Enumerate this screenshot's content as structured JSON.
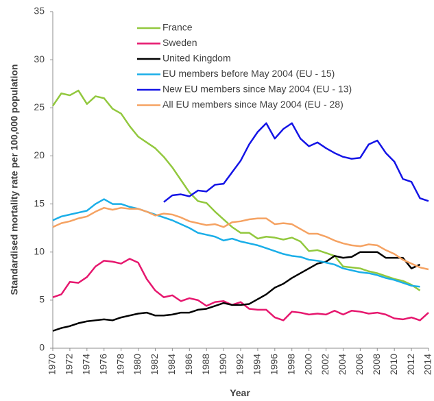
{
  "chart_data": {
    "type": "line",
    "y_label": "Standardised mortality rate per 100,000 population",
    "x_label": "Year",
    "x": [
      1970,
      1971,
      1972,
      1973,
      1974,
      1975,
      1976,
      1977,
      1978,
      1979,
      1980,
      1981,
      1982,
      1983,
      1984,
      1985,
      1986,
      1987,
      1988,
      1989,
      1990,
      1991,
      1992,
      1993,
      1994,
      1995,
      1996,
      1997,
      1998,
      1999,
      2000,
      2001,
      2002,
      2003,
      2004,
      2005,
      2006,
      2007,
      2008,
      2009,
      2010,
      2011,
      2012,
      2013,
      2014
    ],
    "xlim": [
      1970,
      2014
    ],
    "xticks": [
      1970,
      1972,
      1974,
      1976,
      1978,
      1980,
      1982,
      1984,
      1986,
      1988,
      1990,
      1992,
      1994,
      1996,
      1998,
      2000,
      2002,
      2004,
      2006,
      2008,
      2010,
      2012,
      2014
    ],
    "ylim": [
      0,
      35
    ],
    "yticks": [
      0,
      5,
      10,
      15,
      20,
      25,
      30,
      35
    ],
    "grid": false,
    "legend": "upper-left",
    "series": [
      {
        "name": "France",
        "color": "#92c83e",
        "values": [
          25.2,
          26.5,
          26.3,
          26.8,
          25.4,
          26.2,
          26.0,
          24.9,
          24.4,
          23.1,
          22.0,
          21.4,
          20.8,
          19.9,
          18.8,
          17.5,
          16.2,
          15.3,
          15.1,
          14.2,
          13.4,
          12.6,
          12.0,
          12.0,
          11.4,
          11.6,
          11.5,
          11.3,
          11.5,
          11.1,
          10.1,
          10.2,
          9.9,
          9.6,
          8.5,
          8.4,
          8.3,
          8.0,
          7.8,
          7.5,
          7.2,
          7.0,
          6.6,
          6.0,
          null
        ]
      },
      {
        "name": "Sweden",
        "color": "#e6176e",
        "values": [
          5.3,
          5.6,
          6.9,
          6.8,
          7.4,
          8.5,
          9.1,
          9.0,
          8.8,
          9.3,
          8.9,
          7.2,
          6.0,
          5.3,
          5.5,
          4.9,
          5.2,
          5.0,
          4.4,
          4.8,
          4.9,
          4.5,
          4.8,
          4.1,
          4.0,
          4.0,
          3.2,
          2.9,
          3.8,
          3.7,
          3.5,
          3.6,
          3.5,
          3.9,
          3.5,
          3.9,
          3.8,
          3.6,
          3.7,
          3.5,
          3.1,
          3.0,
          3.2,
          2.9,
          3.7
        ]
      },
      {
        "name": "United Kingdom",
        "color": "#000000",
        "values": [
          1.8,
          2.1,
          2.3,
          2.6,
          2.8,
          2.9,
          3.0,
          2.9,
          3.2,
          3.4,
          3.6,
          3.7,
          3.4,
          3.4,
          3.5,
          3.7,
          3.7,
          4.0,
          4.1,
          4.4,
          4.7,
          4.5,
          4.5,
          4.6,
          5.1,
          5.6,
          6.3,
          6.7,
          7.3,
          7.8,
          8.3,
          8.8,
          9.0,
          9.6,
          9.4,
          9.5,
          10.0,
          10.0,
          10.0,
          9.4,
          9.4,
          9.4,
          8.3,
          8.7,
          null
        ]
      },
      {
        "name": "EU members before May 2004 (EU - 15)",
        "color": "#1aaee8",
        "values": [
          13.3,
          13.7,
          13.9,
          14.1,
          14.3,
          15.0,
          15.5,
          15.0,
          15.0,
          14.7,
          14.5,
          14.2,
          13.9,
          13.6,
          13.3,
          12.9,
          12.5,
          12.0,
          11.8,
          11.6,
          11.2,
          11.4,
          11.1,
          10.9,
          10.7,
          10.4,
          10.1,
          9.8,
          9.6,
          9.5,
          9.2,
          9.1,
          8.9,
          8.7,
          8.3,
          8.1,
          7.9,
          7.8,
          7.6,
          7.3,
          7.1,
          6.8,
          6.5,
          6.4,
          null
        ]
      },
      {
        "name": "New EU members since May 2004 (EU - 13)",
        "color": "#1414e6",
        "values": [
          null,
          null,
          null,
          null,
          null,
          null,
          null,
          null,
          null,
          null,
          null,
          null,
          null,
          15.2,
          15.9,
          16.0,
          15.8,
          16.4,
          16.3,
          17.0,
          17.1,
          18.3,
          19.5,
          21.2,
          22.5,
          23.4,
          21.8,
          22.8,
          23.4,
          21.8,
          21.0,
          21.4,
          20.8,
          20.3,
          19.9,
          19.7,
          19.8,
          21.2,
          21.6,
          20.3,
          19.4,
          17.6,
          17.3,
          15.6,
          15.3
        ]
      },
      {
        "name": "All EU members since May 2004 (EU - 28)",
        "color": "#f5a262",
        "values": [
          12.6,
          13.0,
          13.2,
          13.5,
          13.7,
          14.2,
          14.6,
          14.4,
          14.6,
          14.5,
          14.5,
          14.2,
          13.8,
          14.0,
          13.9,
          13.6,
          13.2,
          13.0,
          12.8,
          12.9,
          12.6,
          13.1,
          13.2,
          13.4,
          13.5,
          13.5,
          12.9,
          13.0,
          12.9,
          12.4,
          11.9,
          11.9,
          11.6,
          11.2,
          10.9,
          10.7,
          10.6,
          10.8,
          10.7,
          10.2,
          9.8,
          9.2,
          8.8,
          8.4,
          8.2
        ]
      }
    ]
  }
}
